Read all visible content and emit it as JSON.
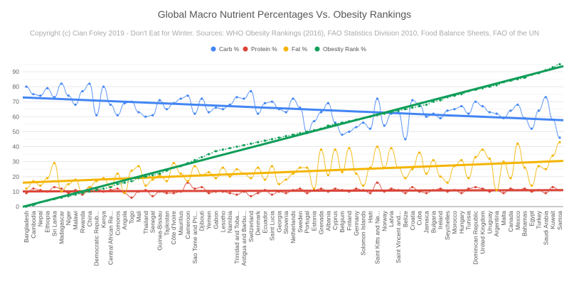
{
  "chart_data": {
    "type": "line",
    "title": "Global Macro Nutrient Percentages Vs. Obesity Rankings",
    "subtitle": "Copyright (c) Cian Foley 2019 - Don't Eat for Winter. Sources: WHO Obesity Rankings (2016), FAO Statistics Division 2010, Food Balance Sheets, FAO of the UN",
    "xlabel": "",
    "ylabel": "",
    "ylim": [
      0,
      90
    ],
    "yticks": [
      0,
      10,
      20,
      30,
      40,
      50,
      60,
      70,
      80,
      90
    ],
    "grid": true,
    "legend_position": "top",
    "trendlines": "linear",
    "categories": [
      "Bangladesh",
      "Cambodia",
      "Nepal",
      "Ethiopia",
      "Sri Lanka",
      "Madagascar",
      "Niger",
      "Malawi",
      "Rwanda",
      "China",
      "Democratic Repub...",
      "Kenya",
      "Central African Re...",
      "Comoros",
      "Angola",
      "Togo",
      "Mali",
      "Thailand",
      "Senegal",
      "Guinea-Bissau",
      "Tajikistan",
      "Côte d'Ivoire",
      "Mauritius",
      "Cameroon",
      "Sao Tome and Pri...",
      "Djibouti",
      "Yemen",
      "Gabon",
      "Lesotho",
      "Namibia",
      "Trinidad and Toba...",
      "Antigua and Barbu...",
      "Switzerland",
      "Denmark",
      "Ecuador",
      "Saint Lucia",
      "Georgia",
      "Slovenia",
      "Netherlands",
      "Sweden",
      "Portugal",
      "Estonia",
      "Grenada",
      "Albania",
      "Cyprus",
      "Belgium",
      "Finland",
      "Germany",
      "Solomon Islands",
      "Haiti",
      "Saint Kitts and Ne...",
      "Norway",
      "Latvia",
      "Saint Vincent and...",
      "Belize",
      "Croatia",
      "Cuba",
      "Jamaica",
      "Bulgaria",
      "Ireland",
      "Seychelles",
      "Morocco",
      "Hungary",
      "Tunisia",
      "Dominican Republic",
      "United Kingdom",
      "Uruguay",
      "Argentina",
      "Malta",
      "Canada",
      "Mexico",
      "Bahamas",
      "Egypt",
      "Turkey",
      "Saudi Arabia",
      "Kuwait",
      "Samoa"
    ],
    "series": [
      {
        "name": "Carb %",
        "color": "#4285f4",
        "values": [
          80,
          75,
          74,
          79,
          73,
          82,
          74,
          68,
          77,
          82,
          61,
          80,
          68,
          61,
          69,
          70,
          63,
          60,
          61,
          71,
          65,
          69,
          72,
          74,
          62,
          72,
          63,
          66,
          65,
          68,
          73,
          72,
          77,
          62,
          69,
          70,
          65,
          63,
          72,
          66,
          49,
          57,
          63,
          69,
          56,
          48,
          50,
          53,
          56,
          52,
          72,
          54,
          62,
          63,
          45,
          71,
          68,
          60,
          62,
          59,
          64,
          65,
          67,
          62,
          70,
          67,
          63,
          62,
          59,
          64,
          68,
          59,
          52,
          64,
          73,
          58,
          46
        ]
      },
      {
        "name": "Protein %",
        "color": "#db4437",
        "values": [
          9,
          12,
          11,
          10,
          13,
          12,
          9,
          11,
          8,
          13,
          12,
          10,
          11,
          12,
          9,
          6,
          10,
          11,
          7,
          10,
          9,
          9,
          10,
          16,
          12,
          13,
          9,
          10,
          10,
          9,
          8,
          10,
          7,
          9,
          11,
          8,
          10,
          9,
          11,
          12,
          9,
          11,
          12,
          10,
          12,
          11,
          10,
          12,
          11,
          9,
          16,
          10,
          12,
          11,
          9,
          13,
          10,
          9,
          11,
          12,
          10,
          11,
          9,
          12,
          13,
          12,
          10,
          11,
          9,
          12,
          11,
          12,
          10,
          11,
          9,
          13,
          11
        ]
      },
      {
        "name": "Fat %",
        "color": "#f4b400",
        "values": [
          12,
          17,
          14,
          19,
          29,
          10,
          15,
          18,
          9,
          13,
          17,
          19,
          13,
          22,
          9,
          24,
          27,
          14,
          18,
          21,
          17,
          29,
          22,
          17,
          27,
          21,
          23,
          19,
          26,
          20,
          25,
          22,
          19,
          26,
          18,
          27,
          15,
          18,
          22,
          26,
          26,
          12,
          38,
          21,
          38,
          23,
          39,
          22,
          14,
          26,
          40,
          26,
          39,
          26,
          19,
          25,
          36,
          22,
          31,
          20,
          16,
          27,
          31,
          19,
          33,
          38,
          32,
          11,
          30,
          19,
          42,
          26,
          14,
          27,
          25,
          34,
          43
        ]
      },
      {
        "name": "Obestiy Rank %",
        "color": "#0f9d58",
        "values": [
          0,
          1,
          3,
          4,
          5,
          6,
          7,
          8,
          9,
          10,
          11,
          12,
          13,
          15,
          16,
          17,
          19,
          20,
          21,
          22,
          24,
          26,
          27,
          29,
          31,
          33,
          35,
          37,
          38,
          39,
          40,
          41,
          42,
          43,
          44,
          45,
          46,
          47,
          48,
          49,
          50,
          51,
          52,
          54,
          55,
          56,
          57,
          58,
          59,
          60,
          61,
          62,
          63,
          64,
          65,
          66,
          67,
          68,
          70,
          71,
          73,
          74,
          75,
          77,
          78,
          79,
          80,
          81,
          83,
          84,
          85,
          86,
          88,
          89,
          91,
          93,
          95
        ]
      }
    ]
  }
}
